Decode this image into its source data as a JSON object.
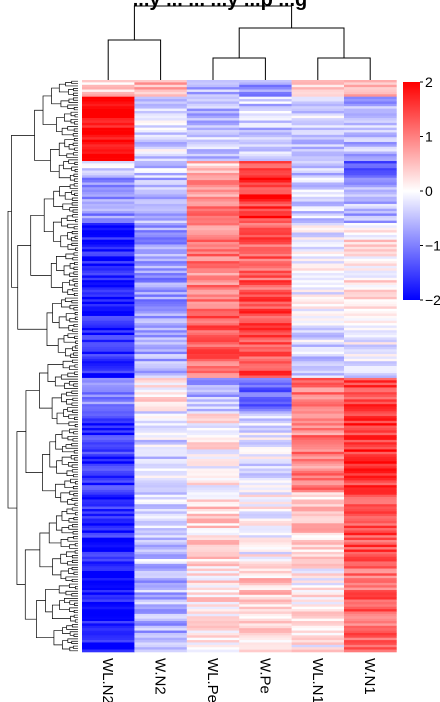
{
  "chart_data": {
    "type": "heatmap",
    "title": "...y ... ... ...y ...p ...g",
    "columns": [
      "WL.N2",
      "W.N2",
      "WL.Pe",
      "W.Pe",
      "WL.N1",
      "W.N1"
    ],
    "column_dendrogram": "((WL.N2, W.N2), ((WL.Pe, W.Pe), (WL.N1, W.N1)))",
    "row_dendrogram": "shown on left, dense (~600 rows)",
    "color_scale": {
      "min": -2,
      "mid": 0,
      "max": 2,
      "colors": {
        "low": "#0000ff",
        "mid": "#ffffff",
        "high": "#ff0000"
      },
      "ticks": [
        2,
        1,
        0,
        -1,
        -2
      ]
    },
    "row_blocks": [
      {
        "rows_fraction": [
          0.0,
          0.03
        ],
        "values": [
          0.3,
          0.6,
          -0.6,
          -0.9,
          0.4,
          0.5
        ]
      },
      {
        "rows_fraction": [
          0.03,
          0.14
        ],
        "values": [
          2.0,
          -0.3,
          -0.5,
          -0.4,
          -0.4,
          -0.6
        ]
      },
      {
        "rows_fraction": [
          0.14,
          0.17
        ],
        "values": [
          -0.4,
          -0.4,
          0.5,
          1.2,
          -0.4,
          -1.5
        ]
      },
      {
        "rows_fraction": [
          0.17,
          0.25
        ],
        "values": [
          -0.9,
          -0.6,
          0.9,
          1.6,
          -0.3,
          -0.6
        ]
      },
      {
        "rows_fraction": [
          0.25,
          0.4
        ],
        "values": [
          -1.8,
          -0.8,
          1.0,
          1.3,
          -0.1,
          0.2
        ]
      },
      {
        "rows_fraction": [
          0.4,
          0.52
        ],
        "values": [
          -1.7,
          -0.6,
          1.2,
          1.4,
          -0.3,
          -0.2
        ]
      },
      {
        "rows_fraction": [
          0.52,
          0.58
        ],
        "values": [
          -0.9,
          0.2,
          -0.6,
          -1.1,
          1.1,
          1.5
        ]
      },
      {
        "rows_fraction": [
          0.58,
          0.72
        ],
        "values": [
          -1.6,
          -0.3,
          0.1,
          -0.2,
          1.0,
          1.6
        ]
      },
      {
        "rows_fraction": [
          0.72,
          0.85
        ],
        "values": [
          -1.7,
          -0.4,
          0.3,
          0.0,
          0.4,
          1.4
        ]
      },
      {
        "rows_fraction": [
          0.85,
          1.0
        ],
        "values": [
          -1.9,
          -0.6,
          0.2,
          0.4,
          0.1,
          1.2
        ]
      }
    ]
  }
}
